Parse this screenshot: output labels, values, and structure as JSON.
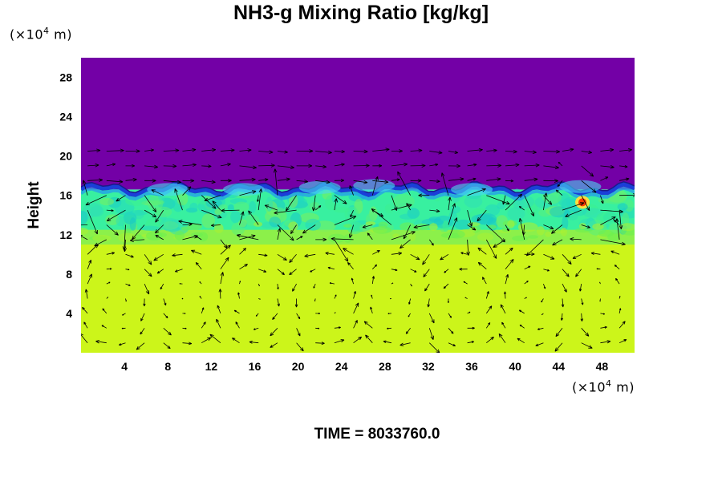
{
  "chart_data": {
    "type": "heatmap",
    "title": "NH3-g Mixing Ratio [kg/kg]",
    "ylabel": "Height",
    "xlabel": "",
    "x_unit_label": {
      "prefix": "(×10",
      "exp": "4",
      "suffix": " m)"
    },
    "y_unit_label": {
      "prefix": "(×10",
      "exp": "4",
      "suffix": " m)"
    },
    "xlim": [
      0,
      51
    ],
    "ylim": [
      0,
      30
    ],
    "x_ticks": [
      4,
      8,
      12,
      16,
      20,
      24,
      28,
      32,
      36,
      40,
      44,
      48
    ],
    "y_ticks": [
      4,
      8,
      12,
      16,
      20,
      24,
      28
    ],
    "colors": {
      "upper": "#7300a6",
      "interface": "#1a3fd8",
      "mid_band": "#38f0a0",
      "transition": "#8cf04a",
      "lower": "#ccf51a",
      "hot_spot": "#ff3a00"
    },
    "regions": [
      {
        "name": "upper",
        "y_from": 16.5,
        "y_to": 30
      },
      {
        "name": "mid_band",
        "y_from": 12,
        "y_to": 16.5
      },
      {
        "name": "lower",
        "y_from": 0,
        "y_to": 11
      }
    ],
    "hot_spot": {
      "x": 46.2,
      "y": 15.3
    },
    "vectors": "wind vector field overlay"
  },
  "footer": {
    "time_label": "TIME = 8033760.0"
  }
}
